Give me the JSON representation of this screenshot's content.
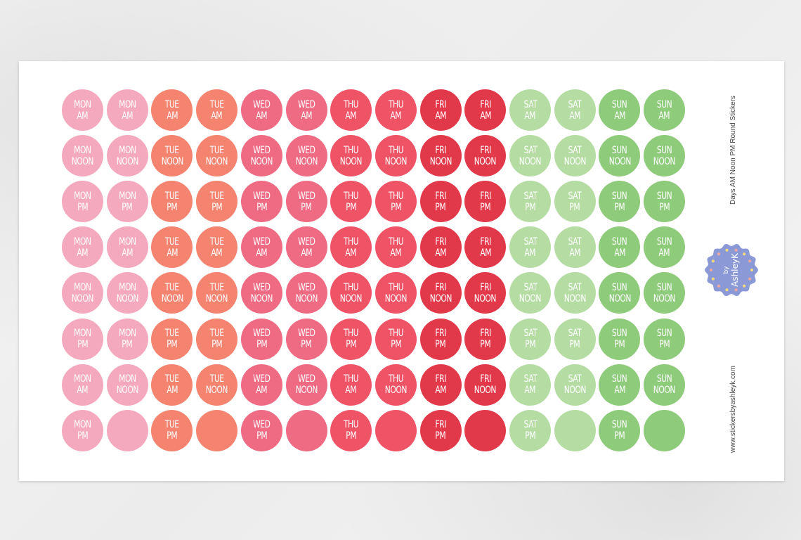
{
  "days": [
    {
      "key": "MON",
      "color": "#f5a9be"
    },
    {
      "key": "TUE",
      "color": "#f4836f"
    },
    {
      "key": "WED",
      "color": "#ef6b84"
    },
    {
      "key": "THU",
      "color": "#ef5366"
    },
    {
      "key": "FRI",
      "color": "#e2394a"
    },
    {
      "key": "SAT",
      "color": "#b5dda3"
    },
    {
      "key": "SUN",
      "color": "#8ecb7b"
    }
  ],
  "rows": [
    [
      "AM",
      "AM",
      "AM",
      "AM",
      "AM",
      "AM",
      "AM",
      "AM",
      "AM",
      "AM",
      "AM",
      "AM",
      "AM",
      "AM"
    ],
    [
      "NOON",
      "NOON",
      "NOON",
      "NOON",
      "NOON",
      "NOON",
      "NOON",
      "NOON",
      "NOON",
      "NOON",
      "NOON",
      "NOON",
      "NOON",
      "NOON"
    ],
    [
      "PM",
      "PM",
      "PM",
      "PM",
      "PM",
      "PM",
      "PM",
      "PM",
      "PM",
      "PM",
      "PM",
      "PM",
      "PM",
      "PM"
    ],
    [
      "AM",
      "AM",
      "AM",
      "AM",
      "AM",
      "AM",
      "AM",
      "AM",
      "AM",
      "AM",
      "AM",
      "AM",
      "AM",
      "AM"
    ],
    [
      "NOON",
      "NOON",
      "NOON",
      "NOON",
      "NOON",
      "NOON",
      "NOON",
      "NOON",
      "NOON",
      "NOON",
      "NOON",
      "NOON",
      "NOON",
      "NOON"
    ],
    [
      "PM",
      "PM",
      "PM",
      "PM",
      "PM",
      "PM",
      "PM",
      "PM",
      "PM",
      "PM",
      "PM",
      "PM",
      "PM",
      "PM"
    ],
    [
      "AM",
      "NOON",
      "AM",
      "NOON",
      "AM",
      "NOON",
      "AM",
      "NOON",
      "AM",
      "NOON",
      "AM",
      "NOON",
      "AM",
      "NOON"
    ],
    [
      "PM",
      "",
      "PM",
      "",
      "PM",
      "",
      "PM",
      "",
      "PM",
      "",
      "PM",
      "",
      "PM",
      ""
    ]
  ],
  "product_title": "Days AM Noon PM  Round Stickers",
  "website": "www.stickersbyashleyk.com",
  "logo": {
    "text_top": "by",
    "text_bottom": "AshleyK",
    "color": "#8b9ad6"
  }
}
